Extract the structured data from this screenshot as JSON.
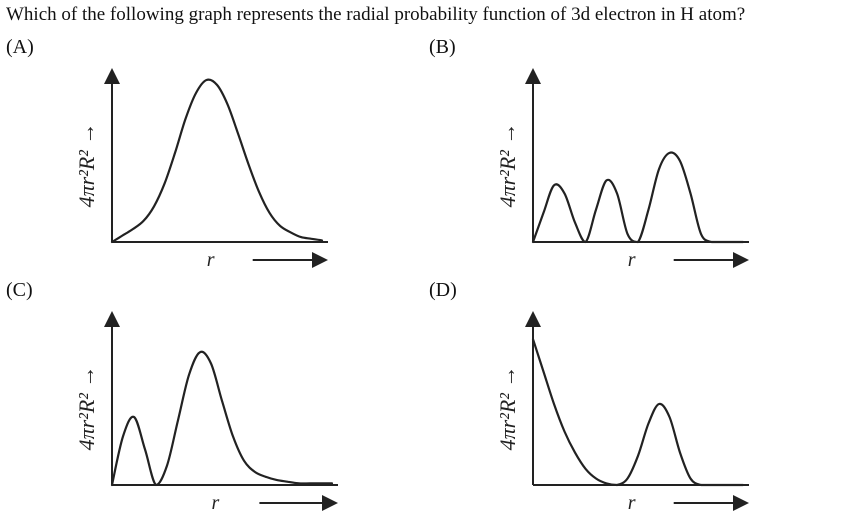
{
  "question": "Which of the following graph represents the radial probability function of 3d electron in H atom?",
  "y_axis_label": "4πr²R² →",
  "x_axis_label": "r",
  "chart_data": [
    {
      "id": "A",
      "option": "(A)",
      "type": "line",
      "ylabel": "4πr²R² →",
      "xlabel": "r",
      "x": [
        0,
        0.5,
        1,
        1.5,
        2,
        2.5,
        3,
        3.5,
        4,
        4.5,
        5,
        5.5,
        6,
        6.5,
        7,
        7.5,
        8,
        8.5,
        9,
        9.5,
        10
      ],
      "values": [
        0,
        0.04,
        0.08,
        0.13,
        0.22,
        0.36,
        0.55,
        0.76,
        0.92,
        1.0,
        0.97,
        0.85,
        0.67,
        0.48,
        0.31,
        0.18,
        0.1,
        0.06,
        0.03,
        0.02,
        0.01
      ]
    },
    {
      "id": "B",
      "option": "(B)",
      "type": "line",
      "ylabel": "4πr²R² →",
      "xlabel": "r",
      "x": [
        0,
        0.5,
        1,
        1.5,
        2,
        2.5,
        3,
        3.5,
        4,
        4.5,
        5,
        5.5,
        6,
        6.5,
        7,
        7.5,
        8,
        8.5,
        9,
        9.5,
        10
      ],
      "values": [
        0,
        0.18,
        0.35,
        0.3,
        0.12,
        0,
        0.2,
        0.38,
        0.3,
        0.05,
        0,
        0.2,
        0.45,
        0.55,
        0.5,
        0.3,
        0.05,
        0,
        0,
        0,
        0
      ]
    },
    {
      "id": "C",
      "option": "(C)",
      "type": "line",
      "ylabel": "4πr²R² →",
      "xlabel": "r",
      "x": [
        0,
        0.5,
        1,
        1.5,
        2,
        2.5,
        3,
        3.5,
        4,
        4.5,
        5,
        5.5,
        6,
        6.5,
        7,
        7.5,
        8,
        8.5,
        9,
        9.5,
        10
      ],
      "values": [
        0,
        0.3,
        0.42,
        0.22,
        0,
        0.12,
        0.4,
        0.68,
        0.82,
        0.75,
        0.52,
        0.3,
        0.15,
        0.08,
        0.05,
        0.03,
        0.02,
        0.01,
        0.01,
        0.01,
        0.01
      ]
    },
    {
      "id": "D",
      "option": "(D)",
      "type": "line",
      "ylabel": "4πr²R² →",
      "xlabel": "r",
      "x": [
        0,
        0.5,
        1,
        1.5,
        2,
        2.5,
        3,
        3.5,
        4,
        4.5,
        5,
        5.5,
        6,
        6.5,
        7,
        7.5,
        8,
        8.5,
        9,
        9.5,
        10
      ],
      "values": [
        0.9,
        0.7,
        0.5,
        0.33,
        0.2,
        0.1,
        0.04,
        0.01,
        0,
        0.04,
        0.18,
        0.38,
        0.5,
        0.42,
        0.2,
        0.04,
        0,
        0,
        0,
        0,
        0
      ]
    }
  ]
}
